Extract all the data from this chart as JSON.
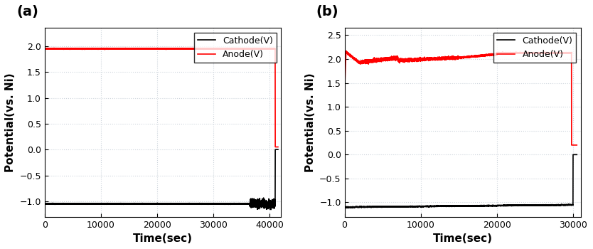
{
  "panel_a": {
    "label": "(a)",
    "xlim": [
      0,
      42000
    ],
    "ylim": [
      -1.3,
      2.35
    ],
    "xticks": [
      0,
      10000,
      20000,
      30000,
      40000
    ],
    "yticks": [
      -1.0,
      -0.5,
      0.0,
      0.5,
      1.0,
      1.5,
      2.0
    ],
    "xlabel": "Time(sec)",
    "ylabel": "Potential(vs. Ni)",
    "cathode_color": "#000000",
    "anode_color": "#ff0000",
    "legend_labels": [
      "Cathode(V)",
      "Anode(V)"
    ],
    "cathode_steady": -1.05,
    "anode_steady": 1.95,
    "end_time": 41500,
    "noise_start": 36500,
    "noise_end": 41000,
    "anode_drop_end": 0.05
  },
  "panel_b": {
    "label": "(b)",
    "xlim": [
      0,
      31000
    ],
    "ylim": [
      -1.3,
      2.65
    ],
    "xticks": [
      0,
      10000,
      20000,
      30000
    ],
    "yticks": [
      -1.0,
      -0.5,
      0.0,
      0.5,
      1.0,
      1.5,
      2.0,
      2.5
    ],
    "xlabel": "Time(sec)",
    "ylabel": "Potential(vs. Ni)",
    "cathode_color": "#000000",
    "anode_color": "#ff0000",
    "legend_labels": [
      "Cathode(V)",
      "Anode(V)"
    ],
    "cathode_start": -1.1,
    "cathode_end_steady": -1.05,
    "anode_start": 1.3,
    "anode_peak": 2.15,
    "anode_drop_level": 1.92,
    "anode_final": 2.15,
    "anode_end_drop": 0.2,
    "end_time": 30500
  },
  "grid_color": "#c8d0d8",
  "grid_linestyle": ":",
  "grid_alpha": 0.9,
  "grid_linewidth": 0.8,
  "background_color": "#ffffff",
  "linewidth": 1.2,
  "label_fontsize": 11,
  "tick_fontsize": 9,
  "legend_fontsize": 9,
  "panel_label_fontsize": 14
}
